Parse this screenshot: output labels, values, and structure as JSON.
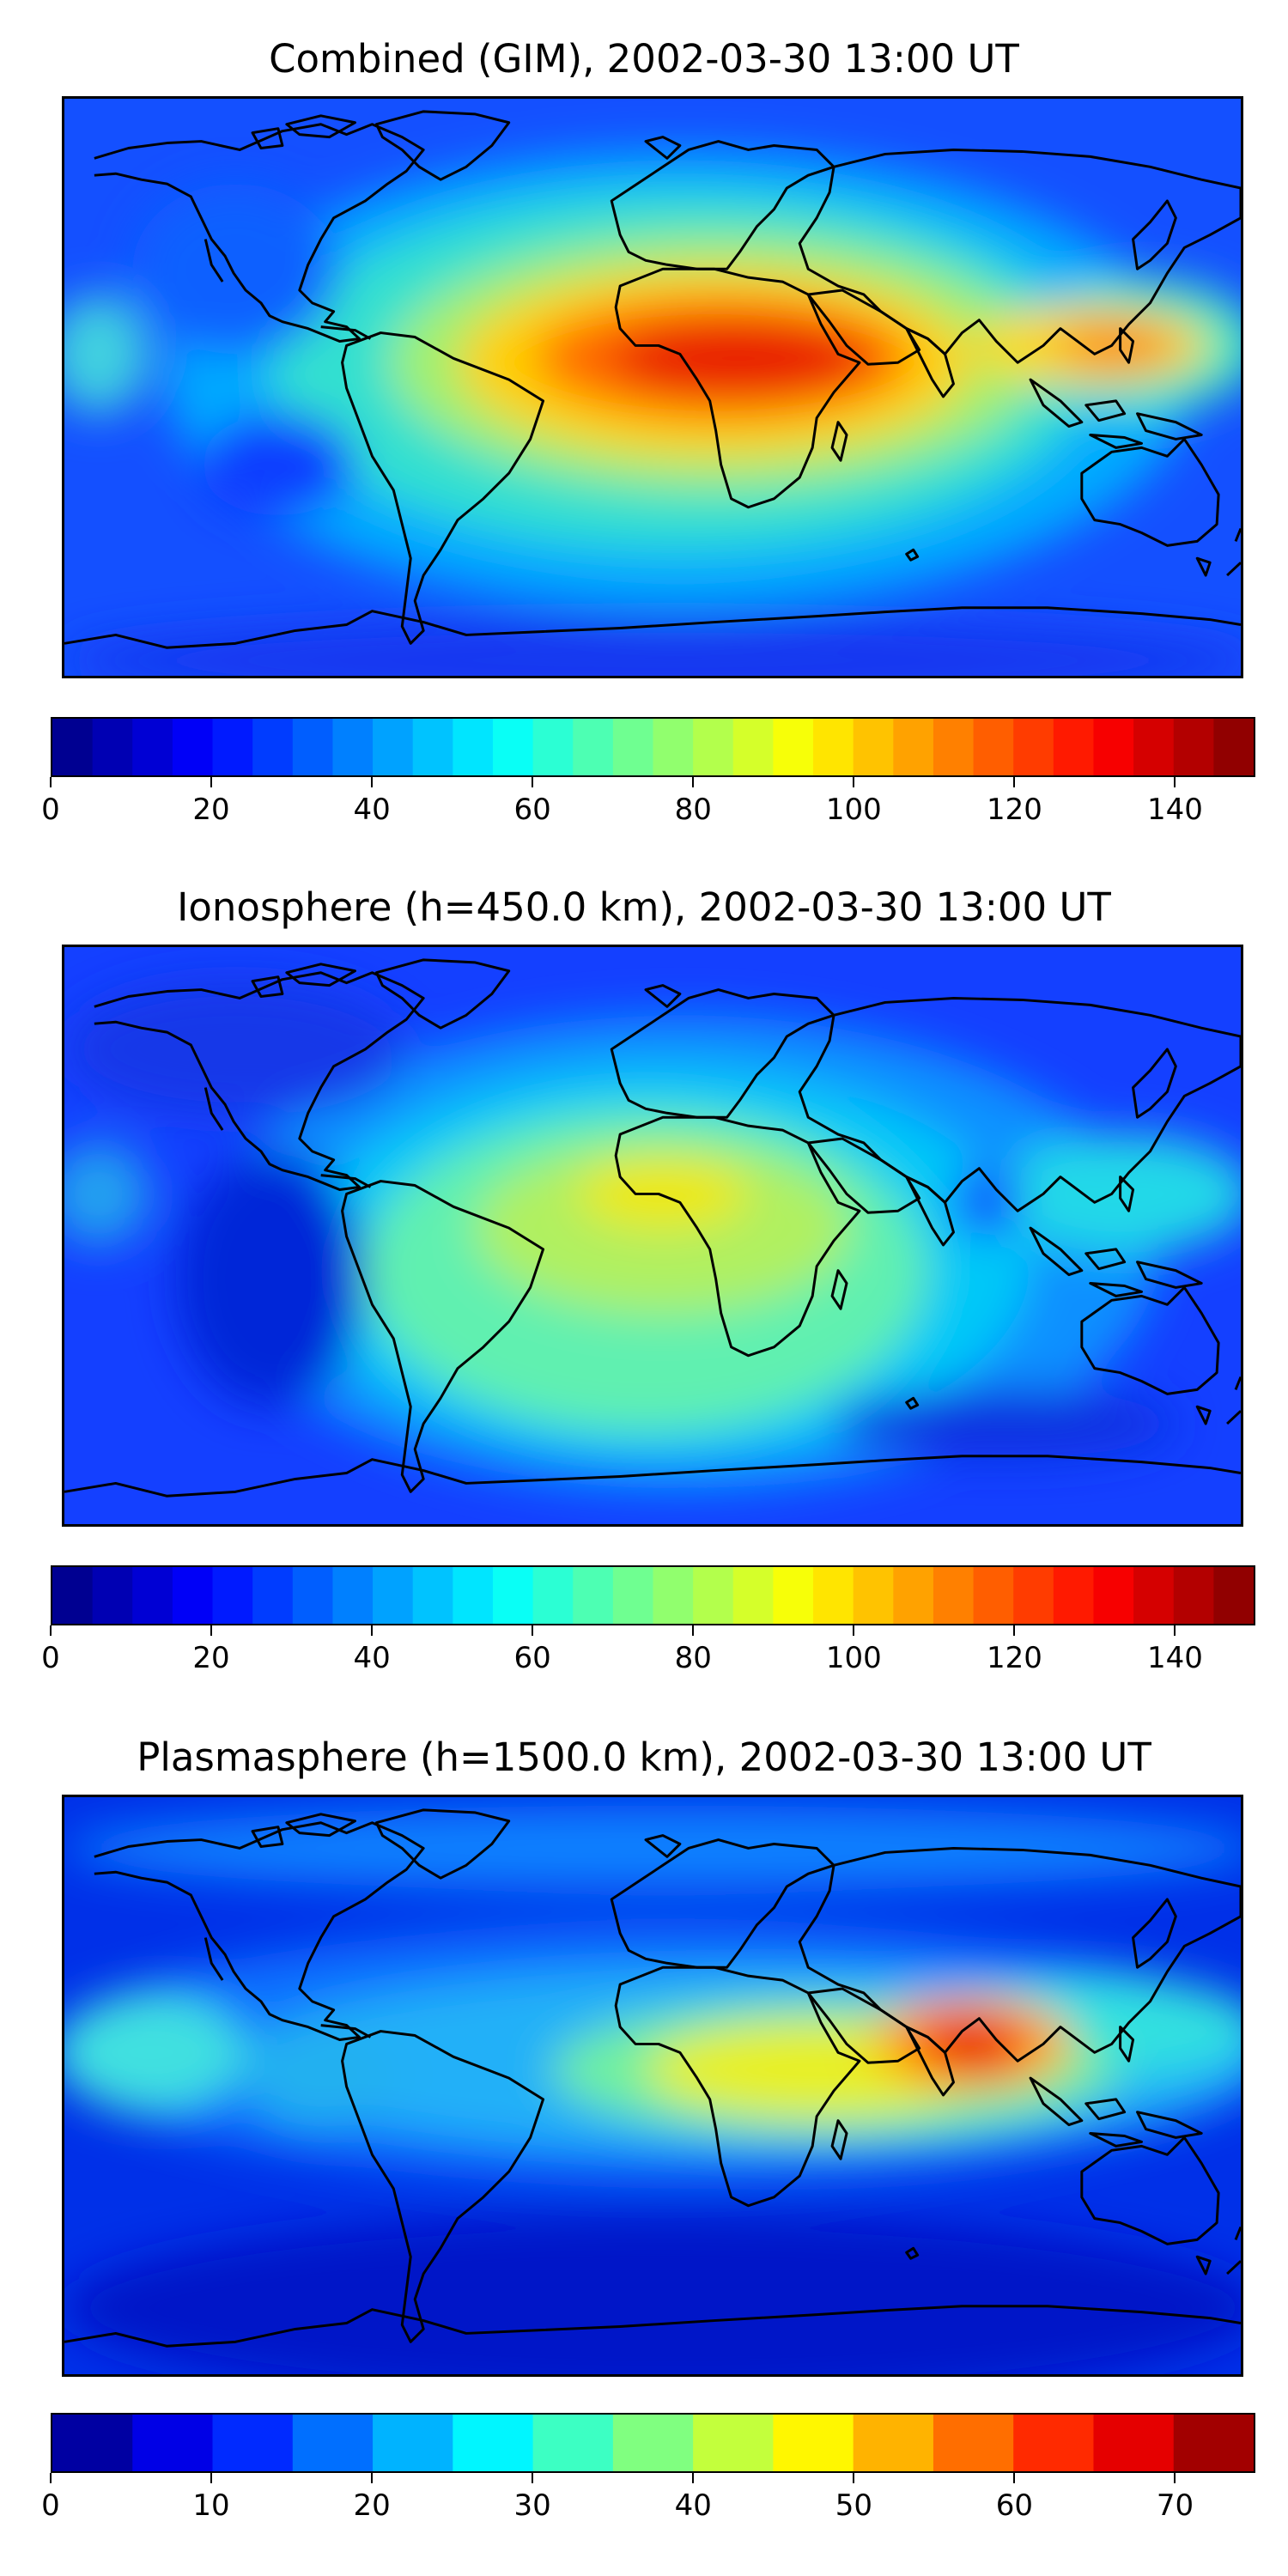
{
  "panels": [
    {
      "title": "Combined (GIM), 2002-03-30 13:00 UT",
      "colorbar": {
        "min": 0,
        "max": 150,
        "step": 5,
        "ticks": [
          "0",
          "20",
          "40",
          "60",
          "80",
          "100",
          "120",
          "140"
        ],
        "tick_values": [
          0,
          20,
          40,
          60,
          80,
          100,
          120,
          140
        ]
      }
    },
    {
      "title": "Ionosphere  (h=450.0 km), 2002-03-30 13:00 UT",
      "colorbar": {
        "min": 0,
        "max": 150,
        "step": 5,
        "ticks": [
          "0",
          "20",
          "40",
          "60",
          "80",
          "100",
          "120",
          "140"
        ],
        "tick_values": [
          0,
          20,
          40,
          60,
          80,
          100,
          120,
          140
        ]
      }
    },
    {
      "title": "Plasmasphere (h=1500.0 km), 2002-03-30 13:00 UT",
      "colorbar": {
        "min": 0,
        "max": 75,
        "step": 5,
        "ticks": [
          "0",
          "10",
          "20",
          "30",
          "40",
          "50",
          "60",
          "70"
        ],
        "tick_values": [
          0,
          10,
          20,
          30,
          40,
          50,
          60,
          70
        ]
      }
    }
  ],
  "colormap": "jet",
  "colors": {
    "background": "#ffffff",
    "coastline": "#000000",
    "jet_low": "#00007f",
    "jet_high": "#7f0000"
  }
}
